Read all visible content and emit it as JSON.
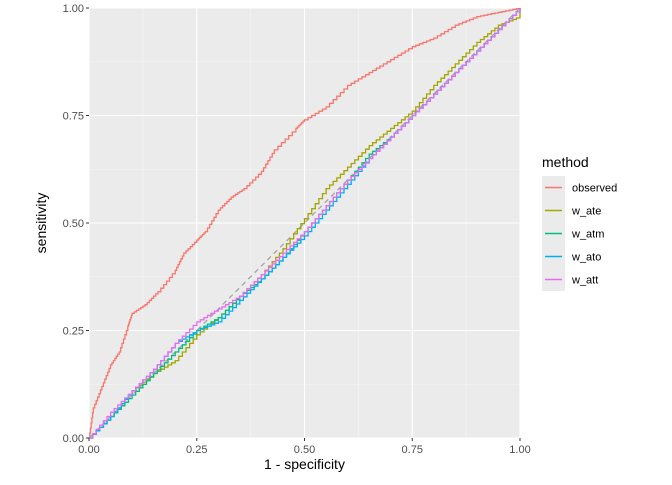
{
  "chart_data": {
    "type": "line",
    "title": "",
    "xlabel": "1 - specificity",
    "ylabel": "sensitivity",
    "xlim": [
      0,
      1
    ],
    "ylim": [
      0,
      1
    ],
    "grid": true,
    "xticks": [
      "0.00",
      "0.25",
      "0.50",
      "0.75",
      "1.00"
    ],
    "yticks": [
      "0.00",
      "0.25",
      "0.50",
      "0.75",
      "1.00"
    ],
    "legend": {
      "title": "method",
      "placement": "right"
    },
    "reference_line": {
      "style": "dashed",
      "color": "#A0A0A0",
      "points": [
        [
          0,
          0
        ],
        [
          1,
          1
        ]
      ]
    },
    "series": [
      {
        "name": "observed",
        "color": "#F8766D",
        "points": [
          [
            0,
            0
          ],
          [
            0.01,
            0.07
          ],
          [
            0.03,
            0.12
          ],
          [
            0.05,
            0.17
          ],
          [
            0.07,
            0.2
          ],
          [
            0.09,
            0.26
          ],
          [
            0.1,
            0.29
          ],
          [
            0.13,
            0.31
          ],
          [
            0.16,
            0.34
          ],
          [
            0.2,
            0.39
          ],
          [
            0.22,
            0.43
          ],
          [
            0.25,
            0.46
          ],
          [
            0.27,
            0.48
          ],
          [
            0.3,
            0.53
          ],
          [
            0.33,
            0.56
          ],
          [
            0.36,
            0.58
          ],
          [
            0.4,
            0.62
          ],
          [
            0.43,
            0.67
          ],
          [
            0.48,
            0.72
          ],
          [
            0.5,
            0.74
          ],
          [
            0.55,
            0.77
          ],
          [
            0.6,
            0.82
          ],
          [
            0.65,
            0.85
          ],
          [
            0.7,
            0.88
          ],
          [
            0.75,
            0.91
          ],
          [
            0.8,
            0.93
          ],
          [
            0.85,
            0.96
          ],
          [
            0.9,
            0.98
          ],
          [
            0.95,
            0.99
          ],
          [
            1,
            1
          ]
        ]
      },
      {
        "name": "w_ate",
        "color": "#A3A500",
        "points": [
          [
            0,
            0
          ],
          [
            0.05,
            0.05
          ],
          [
            0.1,
            0.11
          ],
          [
            0.15,
            0.15
          ],
          [
            0.2,
            0.18
          ],
          [
            0.25,
            0.24
          ],
          [
            0.3,
            0.28
          ],
          [
            0.35,
            0.33
          ],
          [
            0.4,
            0.38
          ],
          [
            0.45,
            0.44
          ],
          [
            0.5,
            0.51
          ],
          [
            0.55,
            0.58
          ],
          [
            0.6,
            0.63
          ],
          [
            0.65,
            0.68
          ],
          [
            0.7,
            0.72
          ],
          [
            0.75,
            0.76
          ],
          [
            0.8,
            0.82
          ],
          [
            0.85,
            0.87
          ],
          [
            0.9,
            0.92
          ],
          [
            0.95,
            0.96
          ],
          [
            1,
            0.98
          ],
          [
            1,
            1
          ]
        ]
      },
      {
        "name": "w_atm",
        "color": "#00BF7D",
        "points": [
          [
            0,
            0
          ],
          [
            0.05,
            0.05
          ],
          [
            0.1,
            0.1
          ],
          [
            0.15,
            0.15
          ],
          [
            0.2,
            0.2
          ],
          [
            0.25,
            0.25
          ],
          [
            0.3,
            0.28
          ],
          [
            0.35,
            0.33
          ],
          [
            0.4,
            0.37
          ],
          [
            0.45,
            0.42
          ],
          [
            0.5,
            0.48
          ],
          [
            0.55,
            0.54
          ],
          [
            0.6,
            0.6
          ],
          [
            0.65,
            0.66
          ],
          [
            0.7,
            0.7
          ],
          [
            0.75,
            0.75
          ],
          [
            0.8,
            0.8
          ],
          [
            0.85,
            0.85
          ],
          [
            0.9,
            0.9
          ],
          [
            0.95,
            0.95
          ],
          [
            1,
            1
          ]
        ]
      },
      {
        "name": "w_ato",
        "color": "#00B0F6",
        "points": [
          [
            0,
            0
          ],
          [
            0.05,
            0.05
          ],
          [
            0.1,
            0.11
          ],
          [
            0.15,
            0.16
          ],
          [
            0.2,
            0.22
          ],
          [
            0.25,
            0.25
          ],
          [
            0.3,
            0.27
          ],
          [
            0.35,
            0.32
          ],
          [
            0.4,
            0.37
          ],
          [
            0.45,
            0.42
          ],
          [
            0.5,
            0.47
          ],
          [
            0.55,
            0.53
          ],
          [
            0.6,
            0.59
          ],
          [
            0.65,
            0.65
          ],
          [
            0.7,
            0.7
          ],
          [
            0.75,
            0.75
          ],
          [
            0.8,
            0.8
          ],
          [
            0.85,
            0.85
          ],
          [
            0.9,
            0.9
          ],
          [
            0.95,
            0.95
          ],
          [
            1,
            1
          ]
        ]
      },
      {
        "name": "w_att",
        "color": "#E76BF3",
        "points": [
          [
            0,
            0
          ],
          [
            0.05,
            0.06
          ],
          [
            0.1,
            0.11
          ],
          [
            0.15,
            0.16
          ],
          [
            0.2,
            0.22
          ],
          [
            0.25,
            0.27
          ],
          [
            0.3,
            0.3
          ],
          [
            0.35,
            0.33
          ],
          [
            0.4,
            0.38
          ],
          [
            0.45,
            0.43
          ],
          [
            0.5,
            0.48
          ],
          [
            0.55,
            0.54
          ],
          [
            0.6,
            0.6
          ],
          [
            0.65,
            0.65
          ],
          [
            0.7,
            0.7
          ],
          [
            0.75,
            0.75
          ],
          [
            0.8,
            0.8
          ],
          [
            0.85,
            0.85
          ],
          [
            0.9,
            0.9
          ],
          [
            0.95,
            0.95
          ],
          [
            1,
            1
          ]
        ]
      }
    ]
  }
}
